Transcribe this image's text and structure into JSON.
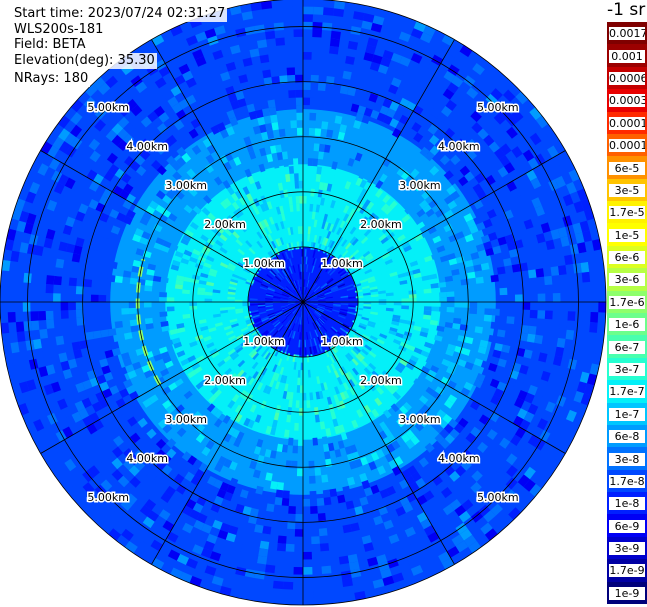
{
  "header": {
    "start_time": "Start time: 2023/07/24 02:31:27",
    "instrument": "WLS200s-181",
    "field": "Field: BETA",
    "elevation": "Elevation(deg): 35.30",
    "nrays": "NRays: 180"
  },
  "colorbar": {
    "unit_label": "-1 sr",
    "labels": [
      "0.0017",
      "0.001",
      "0.0006",
      "0.0003",
      "0.00017",
      "0.0001",
      "6e-5",
      "3e-5",
      "1.7e-5",
      "1e-5",
      "6e-6",
      "3e-6",
      "1.7e-6",
      "1e-6",
      "6e-7",
      "3e-7",
      "1.7e-7",
      "1e-7",
      "6e-8",
      "3e-8",
      "1.7e-8",
      "1e-8",
      "6e-9",
      "3e-9",
      "1.7e-9",
      "1e-9"
    ],
    "colors": [
      "#7f0000",
      "#9b0000",
      "#c40000",
      "#e80000",
      "#ff2a00",
      "#ff6000",
      "#ff9100",
      "#ffc400",
      "#fff200",
      "#ffff00",
      "#dcff1f",
      "#b6ff45",
      "#8eff6b",
      "#6cff8c",
      "#49ffae",
      "#26ffd1",
      "#04f0f8",
      "#00c6ff",
      "#009cff",
      "#0072ff",
      "#0048ff",
      "#0020ff",
      "#0000f5",
      "#0000cc",
      "#0000a3",
      "#00007a"
    ]
  },
  "chart_data": {
    "type": "heatmap",
    "projection": "polar (plan position indicator)",
    "field": "BETA",
    "unit": "sr-1",
    "elevation_deg": 35.3,
    "nrays": 180,
    "range_rings_km": [
      1,
      2,
      3,
      4,
      5
    ],
    "ring_labels": [
      "1.00km",
      "2.00km",
      "3.00km",
      "4.00km",
      "5.00km"
    ],
    "max_range_km": 5.5,
    "radial_spokes_deg": [
      0,
      30,
      60,
      90,
      120,
      150,
      180,
      210,
      240,
      270,
      300,
      330
    ],
    "approx_values_by_range": [
      {
        "range_km": [
          0.0,
          1.0
        ],
        "beta": 1e-08
      },
      {
        "range_km": [
          1.0,
          2.5
        ],
        "beta": 1.7e-07
      },
      {
        "range_km": [
          2.5,
          3.5
        ],
        "beta": 6e-08
      },
      {
        "range_km": [
          3.5,
          5.5
        ],
        "beta": 1.7e-08
      }
    ],
    "features": [
      {
        "description": "bright arc",
        "azimuth_deg": [
          240,
          285
        ],
        "range_km": 3.0,
        "beta": 1.7e-06
      }
    ]
  }
}
